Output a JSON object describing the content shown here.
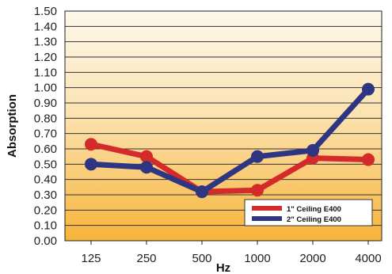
{
  "chart_data": {
    "type": "line",
    "title": "",
    "xlabel": "Hz",
    "ylabel": "Absorption",
    "categories": [
      "125",
      "250",
      "500",
      "1000",
      "2000",
      "4000"
    ],
    "yticks": [
      "0.00",
      "0.10",
      "0.20",
      "0.30",
      "0.40",
      "0.50",
      "0.60",
      "0.70",
      "0.80",
      "0.90",
      "1.00",
      "1.10",
      "1.20",
      "1.30",
      "1.40",
      "1.50"
    ],
    "ylim": [
      0,
      1.5
    ],
    "grid": true,
    "legend_position": "bottom-right",
    "series": [
      {
        "name": "1\" Ceiling E400",
        "color": "#d42a2a",
        "values": [
          0.63,
          0.55,
          0.32,
          0.33,
          0.54,
          0.53
        ]
      },
      {
        "name": "2\" Ceiling E400",
        "color": "#2e3583",
        "values": [
          0.5,
          0.48,
          0.32,
          0.55,
          0.59,
          0.99
        ]
      }
    ],
    "background_gradient": [
      "#fdf8ec",
      "#f7b43a"
    ]
  }
}
